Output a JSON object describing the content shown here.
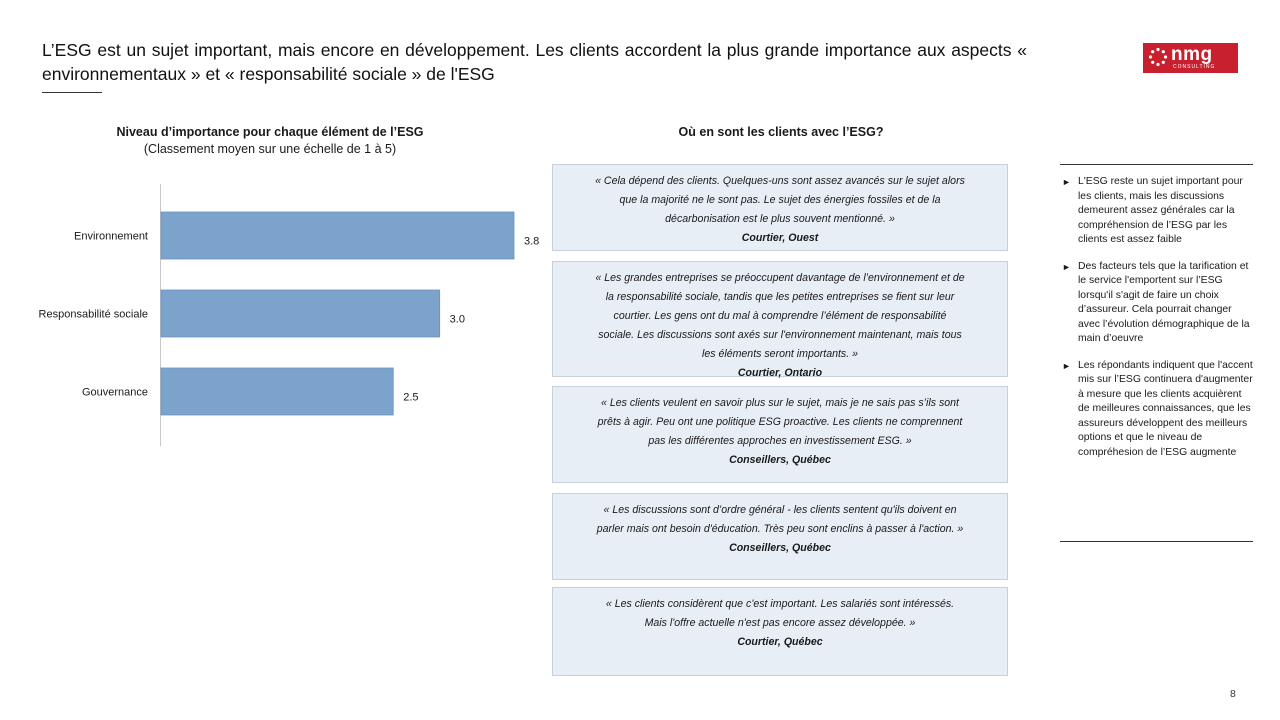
{
  "page": {
    "title": "L’ESG est un sujet important, mais encore en développement.  Les clients accordent la plus grande importance aux aspects « environnementaux  » et « responsabilité  sociale » de l'ESG",
    "page_number": "8"
  },
  "logo": {
    "name": "nmg",
    "tagline": "CONSULTING",
    "color": "#c8202f"
  },
  "chart": {
    "title": "Niveau d’importance pour chaque élément de l’ESG",
    "subtitle": "(Classement moyen sur une échelle de 1 à 5)"
  },
  "chart_data": {
    "type": "bar",
    "orientation": "horizontal",
    "title": "Niveau d’importance pour chaque élément de l’ESG",
    "subtitle": "(Classement moyen sur une échelle de 1 à 5)",
    "categories": [
      "Environnement",
      "Responsabilité sociale",
      "Gouvernance"
    ],
    "values": [
      3.8,
      3.0,
      2.5
    ],
    "value_labels": [
      "3.8",
      "3.0",
      "2.5"
    ],
    "xlim": [
      0,
      5
    ],
    "bar_color": "#7ba3cb",
    "grid": false,
    "legend": "none"
  },
  "quotes": {
    "title": "Où en sont les clients avec l’ESG?",
    "items": [
      {
        "lines": [
          "« Cela dépend des clients.  Quelques-uns sont assez avancés sur le sujet alors",
          "que la majorité ne le sont pas. Le sujet des énergies fossiles et de la",
          "décarbonisation est le plus souvent mentionné.  »"
        ],
        "author": "Courtier, Ouest"
      },
      {
        "lines": [
          "« Les grandes entreprises  se préoccupent davantage de l’environnement et de",
          "la responsabilité sociale, tandis que les petites entreprises  se fient sur leur",
          "courtier.  Les gens ont du mal à comprendre l’élément de responsabilité",
          "sociale. Les discussions sont axés sur l'environnement maintenant,  mais tous",
          "les éléments  seront  importants. »"
        ],
        "author": "Courtier, Ontario"
      },
      {
        "lines": [
          "« Les clients veulent en savoir plus sur le sujet,  mais je ne sais pas s’ils sont",
          "prêts à agir.  Peu ont une politique ESG proactive.  Les clients  ne comprennent",
          "pas les différentes  approches en investissement  ESG. »"
        ],
        "author": "Conseillers,  Québec"
      },
      {
        "lines": [
          "« Les discussions sont d’ordre général - les clients sentent  qu'ils doivent en",
          "parler mais ont besoin d'éducation. Très peu sont enclins à passer à l'action. »"
        ],
        "author": "Conseillers,  Québec"
      },
      {
        "lines": [
          "« Les clients considèrent que c'est important.  Les salariés sont intéressés.",
          "Mais l'offre actuelle n'est pas encore assez développée. »"
        ],
        "author": "Courtier, Québec"
      }
    ]
  },
  "sidebar": {
    "bullets": [
      "L'ESG  reste un sujet important pour les clients, mais les discussions demeurent assez générales car la compréhension de  l’ESG par les clients est assez faible",
      "Des facteurs tels que  la tarification et le service l'emportent  sur l’ESG lorsqu'il s'agit de faire un choix d’assureur. Cela pourrait changer avec l’évolution démographique  de la main d’oeuvre",
      "Les répondants indiquent que l'accent mis sur l’ESG continuera d'augmenter  à mesure que les clients acquièrent de meilleures connaissances, que les assureurs développent des meilleurs options et que le niveau de compréhesion de l’ESG augmente"
    ]
  }
}
